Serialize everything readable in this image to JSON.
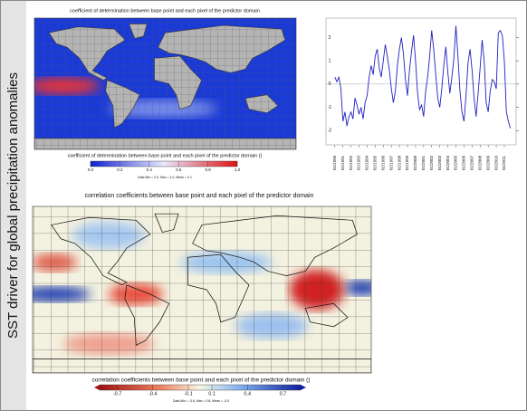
{
  "side_title": "SST driver for global precipitation anomalies",
  "maps": [
    {
      "title": "coefficient of determination between base point and each pixel of the predictor domain",
      "colorbar": {
        "label": "coefficient of determination between base point and each pixel of the predictor domain ()",
        "lim": [
          0,
          1
        ],
        "ticks": [
          {
            "value": 0,
            "label": "0.0"
          },
          0.2,
          0.4,
          0.6,
          0.8,
          {
            "value": 1,
            "label": "1.0"
          }
        ]
      },
      "stats": "Data Min = 0.0, Max = 1.0, Mean = 0.1"
    },
    {
      "title": "correlation coefficients between base point and each pixel of the predictor domain",
      "colorbar": {
        "label": "correlation coefficients between base point and each pixel of the predictor domain ()",
        "lim": [
          -0.85,
          0.85
        ],
        "ticks": [
          -0.7,
          -0.4,
          -0.1,
          0.1,
          0.4,
          0.7
        ]
      },
      "stats": "Data Min = -0.6, Max = 0.8, Mean = -0.0"
    }
  ],
  "chart_data": {
    "type": "line",
    "color": "#2020c0",
    "reference_line": 0,
    "xlim": [
      1989.8,
      2011.9
    ],
    "ylim": [
      -2.3,
      2.6
    ],
    "yticks": [
      -2,
      -1,
      0,
      1,
      2
    ],
    "xticks": [
      {
        "value": 1990,
        "label": "01/1990"
      },
      {
        "value": 1991,
        "label": "01/1991"
      },
      {
        "value": 1992,
        "label": "01/1992"
      },
      {
        "value": 1993,
        "label": "01/1993"
      },
      {
        "value": 1994,
        "label": "01/1994"
      },
      {
        "value": 1995,
        "label": "01/1995"
      },
      {
        "value": 1996,
        "label": "01/1996"
      },
      {
        "value": 1997,
        "label": "01/1997"
      },
      {
        "value": 1998,
        "label": "01/1998"
      },
      {
        "value": 1999,
        "label": "01/1999"
      },
      {
        "value": 2000,
        "label": "01/2000"
      },
      {
        "value": 2001,
        "label": "01/2001"
      },
      {
        "value": 2002,
        "label": "01/2002"
      },
      {
        "value": 2003,
        "label": "01/2003"
      },
      {
        "value": 2004,
        "label": "01/2004"
      },
      {
        "value": 2005,
        "label": "01/2005"
      },
      {
        "value": 2006,
        "label": "01/2006"
      },
      {
        "value": 2007,
        "label": "01/2007"
      },
      {
        "value": 2008,
        "label": "01/2008"
      },
      {
        "value": 2009,
        "label": "01/2009"
      },
      {
        "value": 2010,
        "label": "01/2010"
      },
      {
        "value": 2011,
        "label": "01/2011"
      }
    ],
    "x": [
      1990,
      1990.25,
      1990.5,
      1990.75,
      1991,
      1991.25,
      1991.5,
      1991.75,
      1992,
      1992.25,
      1992.5,
      1992.75,
      1993,
      1993.25,
      1993.5,
      1993.75,
      1994,
      1994.25,
      1994.5,
      1994.75,
      1995,
      1995.25,
      1995.5,
      1995.75,
      1996,
      1996.25,
      1996.5,
      1996.75,
      1997,
      1997.25,
      1997.5,
      1997.75,
      1998,
      1998.25,
      1998.5,
      1998.75,
      1999,
      1999.25,
      1999.5,
      1999.75,
      2000,
      2000.25,
      2000.5,
      2000.75,
      2001,
      2001.25,
      2001.5,
      2001.75,
      2002,
      2002.25,
      2002.5,
      2002.75,
      2003,
      2003.25,
      2003.5,
      2003.75,
      2004,
      2004.25,
      2004.5,
      2004.75,
      2005,
      2005.25,
      2005.5,
      2005.75,
      2006,
      2006.25,
      2006.5,
      2006.75,
      2007,
      2007.25,
      2007.5,
      2007.75,
      2008,
      2008.25,
      2008.5,
      2008.75,
      2009,
      2009.25,
      2009.5,
      2009.75,
      2010,
      2010.25,
      2010.5,
      2010.75,
      2011,
      2011.25,
      2011.5,
      2011.75
    ],
    "values": [
      0.3,
      0.1,
      0.3,
      -0.2,
      -1.6,
      -1.2,
      -1.8,
      -1.4,
      -1.2,
      -1.5,
      -0.6,
      -0.9,
      -1.3,
      -1.0,
      -1.5,
      -0.8,
      -0.5,
      0.3,
      0.8,
      0.4,
      1.2,
      1.5,
      0.7,
      0.3,
      1.0,
      1.7,
      1.2,
      0.6,
      -0.2,
      -0.8,
      -0.3,
      0.8,
      1.5,
      2.0,
      1.3,
      0.2,
      -0.5,
      0.6,
      1.4,
      2.1,
      1.0,
      -0.4,
      -1.1,
      -0.9,
      -1.4,
      -0.3,
      0.3,
      1.2,
      2.3,
      1.5,
      0.4,
      -0.6,
      -1.0,
      -0.2,
      0.8,
      1.6,
      0.5,
      -0.4,
      0.3,
      1.1,
      2.5,
      1.2,
      -0.3,
      -1.2,
      -1.6,
      -0.5,
      0.9,
      1.5,
      0.6,
      -0.6,
      -1.4,
      -0.4,
      0.7,
      1.9,
      1.0,
      -0.8,
      -1.2,
      -0.3,
      0.2,
      0.1,
      -0.2,
      2.2,
      2.3,
      2.1,
      1.0,
      -1.2,
      -1.6,
      -1.9
    ]
  }
}
